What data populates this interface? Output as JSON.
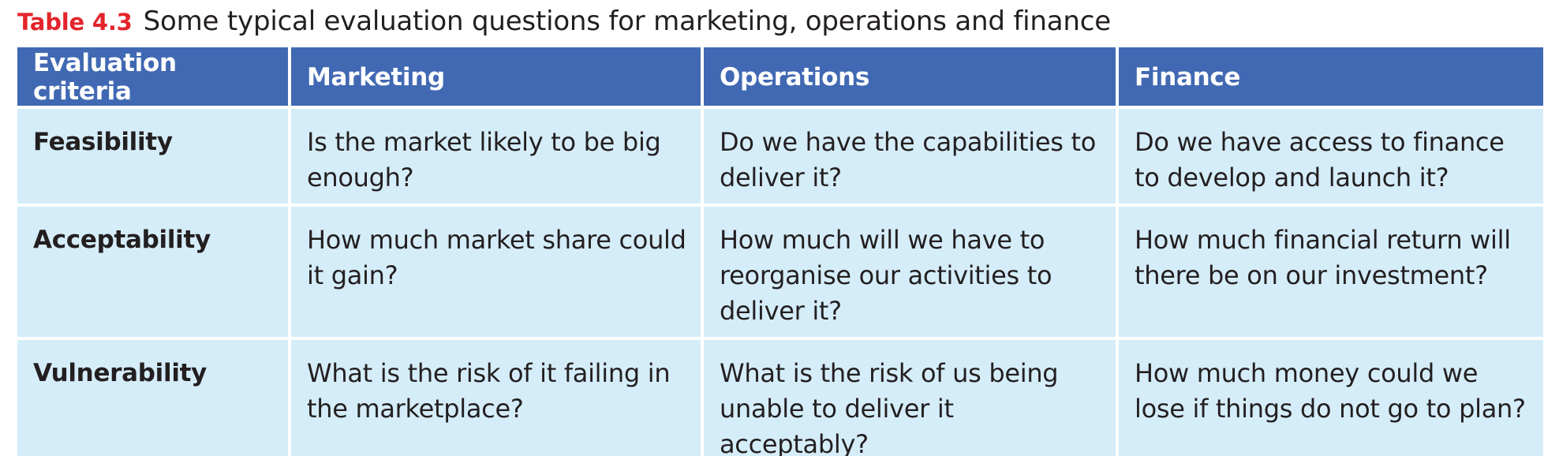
{
  "caption": {
    "label": "Table 4.3",
    "text": "Some typical evaluation questions for marketing, operations and finance"
  },
  "colors": {
    "caption_label": "#e3242b",
    "header_background": "#4169b3",
    "cell_background": "#d5edf9",
    "text": "#231f20"
  },
  "table": {
    "headers": [
      "Evaluation criteria",
      "Marketing",
      "Operations",
      "Finance"
    ],
    "rows": [
      {
        "criteria": "Feasibility",
        "marketing": "Is the market likely to be big enough?",
        "operations": "Do we have the capabilities to deliver it?",
        "finance": "Do we have access to finance to develop and launch it?"
      },
      {
        "criteria": "Acceptability",
        "marketing": "How much market share could it gain?",
        "operations": "How much will we have to reorganise our activities to deliver it?",
        "finance": "How much financial return will there be on our investment?"
      },
      {
        "criteria": "Vulnerability",
        "marketing": "What is the risk of it failing in the marketplace?",
        "operations": "What is the risk of us being unable to deliver it acceptably?",
        "finance": "How much money could we lose if things do not go to plan?"
      }
    ]
  }
}
